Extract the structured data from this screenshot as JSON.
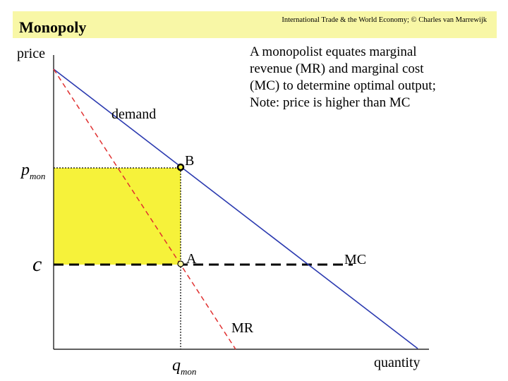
{
  "header": {
    "copyright": "International Trade & the World Economy;  © Charles van Marrewijk",
    "title": "Monopoly"
  },
  "note": {
    "lines": [
      "A monopolist equates marginal",
      "revenue (MR) and marginal cost",
      "(MC) to determine optimal output;",
      "Note: price is higher than MC"
    ]
  },
  "diagram": {
    "y_axis_label": "price",
    "x_axis_label": "quantity",
    "demand_label": "demand",
    "mr_label": "MR",
    "mc_label": "MC",
    "point_b_label": "B",
    "point_a_label": "A",
    "price_mon": {
      "main": "p",
      "sub": "mon"
    },
    "quantity_mon": {
      "main": "q",
      "sub": "mon"
    },
    "cost_label": "c",
    "colors": {
      "demand": "#2b3ab0",
      "mr": "#e03030",
      "mc": "#000000",
      "profit_area": "#f6f23a",
      "header_bg": "#f8f7a6"
    }
  }
}
